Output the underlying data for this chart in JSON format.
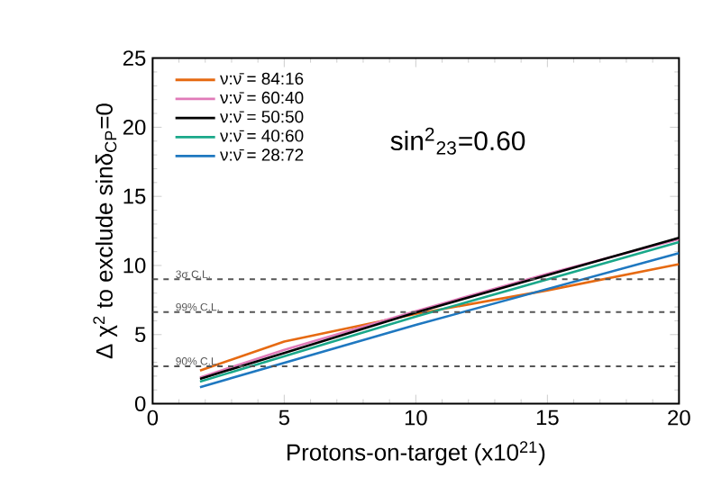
{
  "chart_data": {
    "type": "line",
    "xlabel": "Protons-on-target (x10$^{21}$)",
    "ylabel": "Δ χ$^{2}$ to exclude sinδ$_{CP}$=0",
    "annotations": [
      "sin$^{2}$$_{23}$=0.60"
    ],
    "xlim": [
      0,
      20
    ],
    "ylim": [
      0,
      25
    ],
    "xticks": [
      0,
      5,
      10,
      15,
      20
    ],
    "yticks": [
      0,
      5,
      10,
      15,
      20,
      25
    ],
    "grid": false,
    "legend": "top left",
    "marker": "none",
    "line_style": "solid",
    "series": [
      {
        "name": "ν:ν̄ = 84:16",
        "color": "#e66a12",
        "x": [
          1.8,
          5,
          10,
          15,
          20
        ],
        "values": [
          2.4,
          4.5,
          6.5,
          8.2,
          10.1
        ]
      },
      {
        "name": "ν:ν̄ = 60:40",
        "color": "#e07ab8",
        "x": [
          1.8,
          5,
          10,
          15,
          20
        ],
        "values": [
          1.9,
          3.9,
          6.7,
          9.4,
          11.9
        ]
      },
      {
        "name": "ν:ν̄ = 50:50",
        "color": "#000000",
        "x": [
          1.8,
          10,
          20
        ],
        "values": [
          1.8,
          6.6,
          12.0
        ]
      },
      {
        "name": "ν:ν̄ = 40:60",
        "color": "#1aa88a",
        "x": [
          1.8,
          10,
          20
        ],
        "values": [
          1.6,
          6.3,
          11.7
        ]
      },
      {
        "name": "ν:ν̄ = 28:72",
        "color": "#1f78c0",
        "x": [
          1.8,
          10,
          20
        ],
        "values": [
          1.2,
          5.7,
          10.9
        ]
      }
    ],
    "ref_lines": [
      {
        "axis": "y",
        "value": 9,
        "label": "3σ C.L.",
        "color": "#555555",
        "line_style": "dashed"
      },
      {
        "axis": "y",
        "value": 6.63,
        "label": "99% C.L.",
        "color": "#555555",
        "line_style": "dashed"
      },
      {
        "axis": "y",
        "value": 2.71,
        "label": "90% C.L.",
        "color": "#555555",
        "line_style": "dashed"
      }
    ]
  }
}
